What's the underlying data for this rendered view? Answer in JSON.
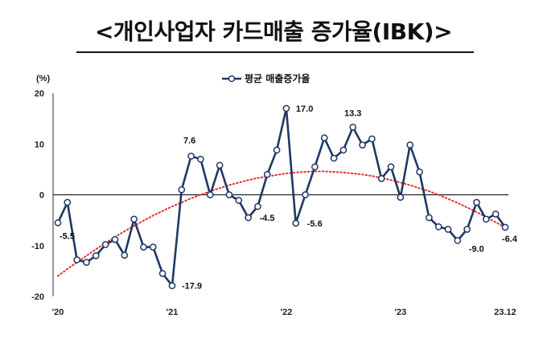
{
  "chart_data": {
    "type": "line",
    "title": "<개인사업자 카드매출 증가율(IBK)>",
    "unit": "(%)",
    "ylim": [
      -20,
      20
    ],
    "yticks": [
      -20,
      -10,
      0,
      10,
      20
    ],
    "xlabel": "",
    "ylabel": "(%)",
    "grid": false,
    "legend": "top-center",
    "x": [
      "2020-01",
      "2020-02",
      "2020-03",
      "2020-04",
      "2020-05",
      "2020-06",
      "2020-07",
      "2020-08",
      "2020-09",
      "2020-10",
      "2020-11",
      "2020-12",
      "2021-01",
      "2021-02",
      "2021-03",
      "2021-04",
      "2021-05",
      "2021-06",
      "2021-07",
      "2021-08",
      "2021-09",
      "2021-10",
      "2021-11",
      "2021-12",
      "2022-01",
      "2022-02",
      "2022-03",
      "2022-04",
      "2022-05",
      "2022-06",
      "2022-07",
      "2022-08",
      "2022-09",
      "2022-10",
      "2022-11",
      "2022-12",
      "2023-01",
      "2023-02",
      "2023-03",
      "2023-04",
      "2023-05",
      "2023-06",
      "2023-07",
      "2023-08",
      "2023-09",
      "2023-10",
      "2023-11",
      "2023-12"
    ],
    "xtick_labels": [
      {
        "x": "2020-01",
        "label": "'20"
      },
      {
        "x": "2021-01",
        "label": "'21"
      },
      {
        "x": "2022-01",
        "label": "'22"
      },
      {
        "x": "2023-01",
        "label": "'23"
      },
      {
        "x": "2023-12",
        "label": "23.12"
      }
    ],
    "series": [
      {
        "name": "평균 매출증가율",
        "color": "#1f3864",
        "marker": "circle-open",
        "values": [
          -5.5,
          -1.5,
          -12.8,
          -13.3,
          -12.0,
          -9.8,
          -8.8,
          -11.9,
          -4.8,
          -10.3,
          -10.3,
          -15.5,
          -17.9,
          1.0,
          7.6,
          7.0,
          0.0,
          5.8,
          0.0,
          -1.1,
          -4.5,
          -2.3,
          4.0,
          8.8,
          17.0,
          -5.6,
          0.0,
          5.5,
          11.2,
          7.2,
          8.8,
          13.3,
          9.8,
          11.0,
          3.2,
          5.5,
          -0.5,
          9.8,
          4.5,
          -4.5,
          -6.3,
          -6.8,
          -9.0,
          -6.8,
          -1.5,
          -4.8,
          -3.8,
          -6.4
        ]
      }
    ],
    "trend": {
      "style": "dotted",
      "color": "#e0302a",
      "values": [
        -16.0,
        -14.6,
        -13.3,
        -12.0,
        -10.7,
        -9.5,
        -8.3,
        -7.2,
        -6.1,
        -5.1,
        -4.1,
        -3.2,
        -2.3,
        -1.5,
        -0.7,
        0.0,
        0.7,
        1.3,
        1.9,
        2.4,
        2.9,
        3.3,
        3.6,
        3.9,
        4.2,
        4.4,
        4.5,
        4.6,
        4.6,
        4.5,
        4.4,
        4.2,
        4.0,
        3.7,
        3.3,
        2.9,
        2.4,
        1.9,
        1.3,
        0.7,
        0.0,
        -0.8,
        -1.6,
        -2.5,
        -3.4,
        -4.4,
        -5.4,
        -6.4
      ]
    },
    "annotations": [
      {
        "x": "2020-01",
        "label": "-5.5"
      },
      {
        "x": "2021-01",
        "label": "-17.9"
      },
      {
        "x": "2021-03",
        "label": "7.6"
      },
      {
        "x": "2021-09",
        "label": "-4.5"
      },
      {
        "x": "2022-01",
        "label": "17.0"
      },
      {
        "x": "2022-02",
        "label": "-5.6"
      },
      {
        "x": "2022-08",
        "label": "13.3"
      },
      {
        "x": "2023-07",
        "label": "-9.0"
      },
      {
        "x": "2023-12",
        "label": "-6.4"
      }
    ]
  }
}
